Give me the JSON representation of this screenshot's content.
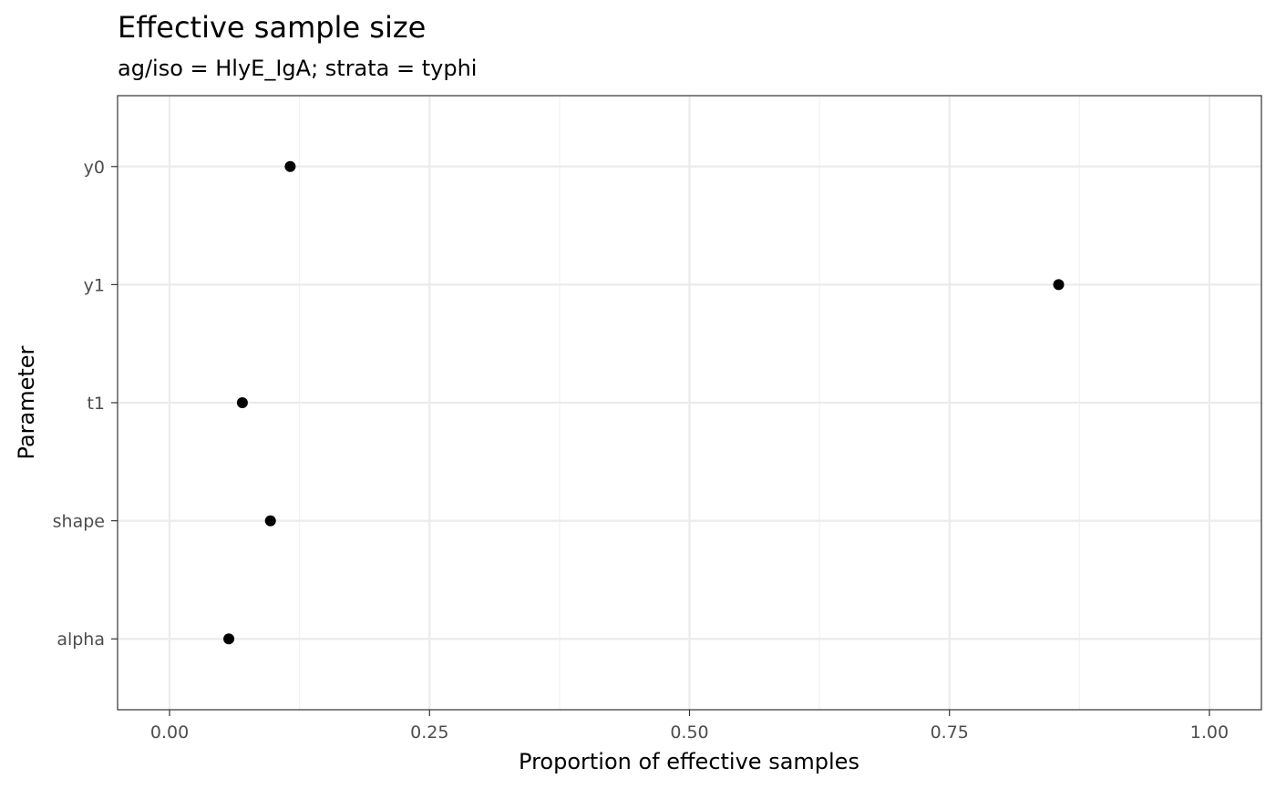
{
  "chart_data": {
    "type": "scatter",
    "title": "Effective sample size",
    "subtitle": "ag/iso = HlyE_IgA; strata =  typhi",
    "xlabel": "Proportion of effective samples",
    "ylabel": "Parameter",
    "xlim": [
      -0.05,
      1.05
    ],
    "x_ticks": [
      0.0,
      0.25,
      0.5,
      0.75,
      1.0
    ],
    "x_tick_labels": [
      "0.00",
      "0.25",
      "0.50",
      "0.75",
      "1.00"
    ],
    "categories": [
      "y0",
      "y1",
      "t1",
      "shape",
      "alpha"
    ],
    "values": [
      0.116,
      0.855,
      0.07,
      0.097,
      0.057
    ],
    "grid": true,
    "theme": "bw",
    "colors": {
      "point": "#000000",
      "grid_major": "#ebebeb",
      "grid_minor": "#f2f2f2",
      "panel_border": "#333333",
      "tick_text": "#4d4d4d"
    }
  }
}
